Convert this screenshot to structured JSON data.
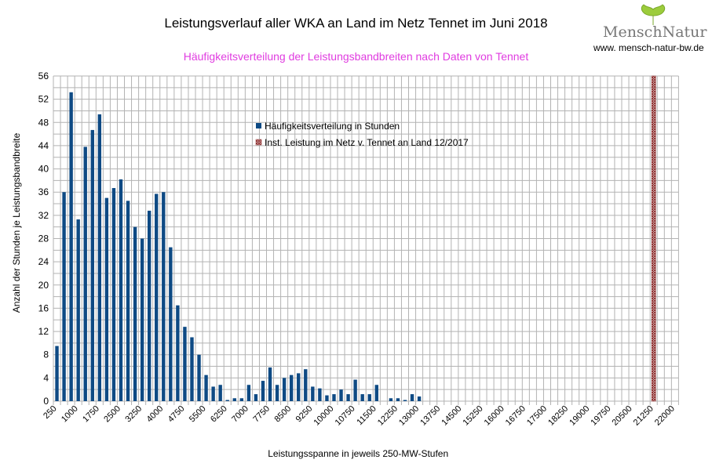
{
  "chart_data": {
    "type": "bar",
    "title": "Leistungsverlauf aller WKA an Land im Netz Tennet im Juni 2018",
    "subtitle": "Häufigkeitsverteilung der Leistungsbandbreiten nach Daten von Tennet",
    "xlabel": "Leistungsspanne in jeweils 250-MW-Stufen",
    "ylabel": "Anzahl der Stunden je Leistungsbandbreite",
    "ylim": [
      0,
      56
    ],
    "yticks": [
      0,
      4,
      8,
      12,
      16,
      20,
      24,
      28,
      32,
      36,
      40,
      44,
      48,
      52,
      56
    ],
    "x_start": 250,
    "x_step": 250,
    "x_end": 22000,
    "x_label_every": 3,
    "grid": true,
    "legend_position": "top-center",
    "series": [
      {
        "name": "Häufigkeitsverteilung in Stunden",
        "color": "#0e4a84",
        "values": [
          9.5,
          36,
          53.2,
          31.3,
          43.8,
          46.7,
          49.4,
          35,
          36.7,
          38.2,
          34.5,
          30,
          28,
          32.8,
          35.7,
          36,
          26.5,
          16.5,
          12.8,
          11,
          8,
          4.5,
          2.5,
          2.8,
          0.2,
          0.5,
          0.5,
          2.8,
          1.2,
          3.5,
          5.8,
          2.8,
          4,
          4.5,
          4.8,
          5.5,
          2.5,
          2.2,
          1,
          1.2,
          2,
          1.2,
          3.7,
          1.2,
          1.2,
          2.8,
          0,
          0.5,
          0.5,
          0.2,
          1.2,
          0.8
        ]
      },
      {
        "name": "Inst. Leistung im Netz v. Tennet an Land 12/2017",
        "color": "#8b2a2a",
        "x": 21250,
        "value": 56
      }
    ]
  },
  "logo": {
    "text": "MenschNatur",
    "url": "www. mensch-natur-bw.de"
  }
}
